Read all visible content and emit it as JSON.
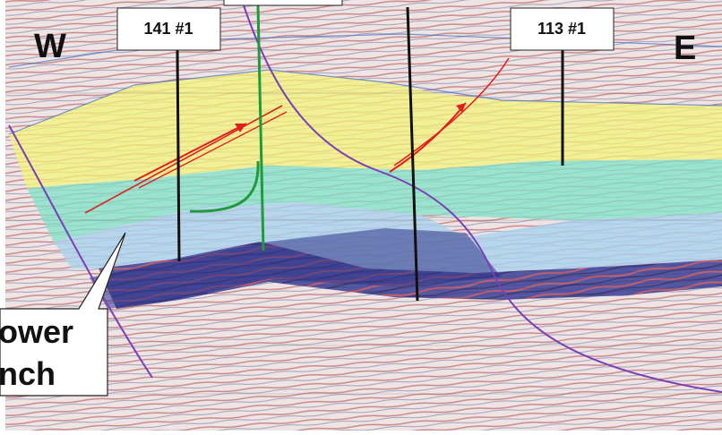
{
  "directions": {
    "west": "W",
    "east": "E"
  },
  "wells": [
    {
      "label": "141 #1"
    },
    {
      "label": "113 #1"
    }
  ],
  "callout": {
    "line1": "ower",
    "line2": "nch"
  },
  "colors": {
    "background": "#e9dcdc",
    "upper_zone": "#f3f37a",
    "middle_zone": "#7fe3c8",
    "lower_zone": "#a9d2ee",
    "deep_zone": "#2b2f87",
    "fault_line": "#7a3fb5",
    "thrust_arrow": "#e0201f",
    "well_black": "#111111",
    "well_green": "#1f9b3c"
  }
}
